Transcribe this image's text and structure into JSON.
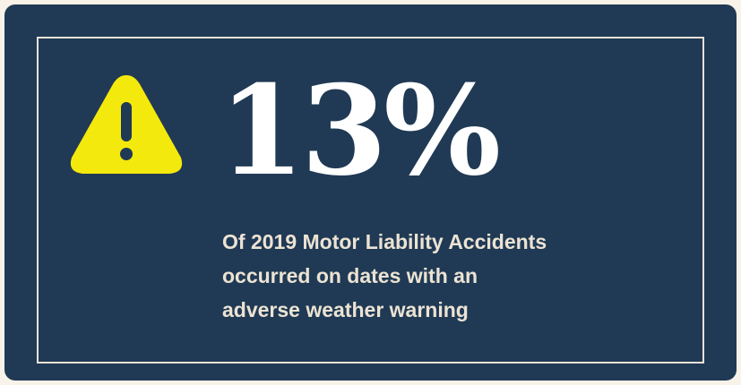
{
  "stat": "13%",
  "description": [
    "Of 2019 Motor Liability Accidents",
    "occurred on dates with an",
    "adverse weather warning"
  ]
}
